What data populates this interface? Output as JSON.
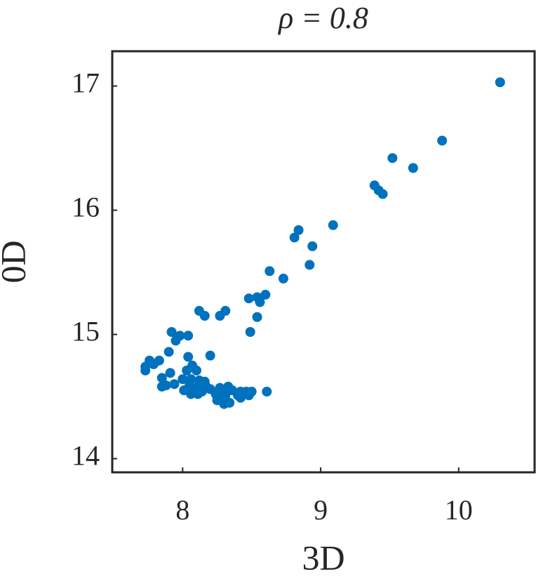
{
  "chart_data": {
    "type": "scatter",
    "title": "ρ = 0.8",
    "x_label": "3D",
    "y_label": "0D",
    "color": "#0072bd",
    "xlim": [
      7.49,
      10.55
    ],
    "ylim": [
      13.89,
      17.28
    ],
    "xticks": [
      8,
      9,
      10
    ],
    "yticks": [
      14,
      15,
      16,
      17
    ],
    "x": [
      10.3,
      9.88,
      9.52,
      9.67,
      9.39,
      9.42,
      9.45,
      9.09,
      8.84,
      8.81,
      8.94,
      8.92,
      8.63,
      8.73,
      8.6,
      8.54,
      8.48,
      8.56,
      8.12,
      8.31,
      8.16,
      8.27,
      8.54,
      8.49,
      7.92,
      7.98,
      8.04,
      7.95,
      7.9,
      8.2,
      8.04,
      7.83,
      7.76,
      7.79,
      7.73,
      7.73,
      8.07,
      8.03,
      8.1,
      7.91,
      7.85,
      8.0,
      8.06,
      8.12,
      8.16,
      7.94,
      7.88,
      7.85,
      8.05,
      8.11,
      8.17,
      8.01,
      8.08,
      8.14,
      8.2,
      8.27,
      8.33,
      8.29,
      8.36,
      8.42,
      8.46,
      8.5,
      8.61,
      8.06,
      8.11,
      8.24,
      8.31,
      8.4,
      8.48,
      8.42,
      8.3,
      8.25,
      8.34,
      8.3
    ],
    "values": [
      17.03,
      16.56,
      16.42,
      16.34,
      16.2,
      16.16,
      16.13,
      15.88,
      15.84,
      15.78,
      15.71,
      15.56,
      15.51,
      15.45,
      15.32,
      15.3,
      15.29,
      15.26,
      15.19,
      15.19,
      15.15,
      15.15,
      15.14,
      15.02,
      15.02,
      14.99,
      14.99,
      14.95,
      14.86,
      14.83,
      14.82,
      14.79,
      14.79,
      14.76,
      14.74,
      14.71,
      14.75,
      14.71,
      14.71,
      14.69,
      14.65,
      14.64,
      14.64,
      14.63,
      14.62,
      14.6,
      14.59,
      14.58,
      14.59,
      14.58,
      14.58,
      14.55,
      14.55,
      14.54,
      14.56,
      14.57,
      14.58,
      14.54,
      14.55,
      14.54,
      14.54,
      14.54,
      14.54,
      14.52,
      14.52,
      14.52,
      14.51,
      14.51,
      14.51,
      14.49,
      14.49,
      14.47,
      14.45,
      14.44
    ]
  }
}
